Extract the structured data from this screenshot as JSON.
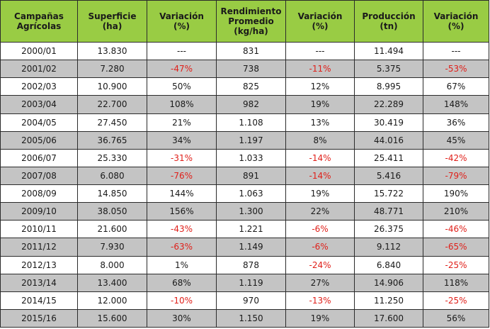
{
  "table": {
    "headers": [
      [
        "Campañas",
        "Agrícolas"
      ],
      [
        "Superficie",
        "(ha)"
      ],
      [
        "Variación",
        "(%)"
      ],
      [
        "Rendimiento",
        "Promedio",
        "(kg/ha)"
      ],
      [
        "Variación",
        "(%)"
      ],
      [
        "Producción",
        "(tn)"
      ],
      [
        "Variación",
        "(%)"
      ]
    ],
    "rows": [
      [
        "2000/01",
        "13.830",
        "---",
        "831",
        "---",
        "11.494",
        "---"
      ],
      [
        "2001/02",
        "7.280",
        "-47%",
        "738",
        "-11%",
        "5.375",
        "-53%"
      ],
      [
        "2002/03",
        "10.900",
        "50%",
        "825",
        "12%",
        "8.995",
        "67%"
      ],
      [
        "2003/04",
        "22.700",
        "108%",
        "982",
        "19%",
        "22.289",
        "148%"
      ],
      [
        "2004/05",
        "27.450",
        "21%",
        "1.108",
        "13%",
        "30.419",
        "36%"
      ],
      [
        "2005/06",
        "36.765",
        "34%",
        "1.197",
        "8%",
        "44.016",
        "45%"
      ],
      [
        "2006/07",
        "25.330",
        "-31%",
        "1.033",
        "-14%",
        "25.411",
        "-42%"
      ],
      [
        "2007/08",
        "6.080",
        "-76%",
        "891",
        "-14%",
        "5.416",
        "-79%"
      ],
      [
        "2008/09",
        "14.850",
        "144%",
        "1.063",
        "19%",
        "15.722",
        "190%"
      ],
      [
        "2009/10",
        "38.050",
        "156%",
        "1.300",
        "22%",
        "48.771",
        "210%"
      ],
      [
        "2010/11",
        "21.600",
        "-43%",
        "1.221",
        "-6%",
        "26.375",
        "-46%"
      ],
      [
        "2011/12",
        "7.930",
        "-63%",
        "1.149",
        "-6%",
        "9.112",
        "-65%"
      ],
      [
        "2012/13",
        "8.000",
        "1%",
        "878",
        "-24%",
        "6.840",
        "-25%"
      ],
      [
        "2013/14",
        "13.400",
        "68%",
        "1.119",
        "27%",
        "14.906",
        "118%"
      ],
      [
        "2014/15",
        "12.000",
        "-10%",
        "970",
        "-13%",
        "11.250",
        "-25%"
      ],
      [
        "2015/16",
        "15.600",
        "30%",
        "1.150",
        "19%",
        "17.600",
        "56%"
      ]
    ]
  },
  "colors": {
    "header_bg": "#99cc44",
    "row_alt_bg": "#c4c4c4",
    "negative_text": "#e0201a"
  }
}
